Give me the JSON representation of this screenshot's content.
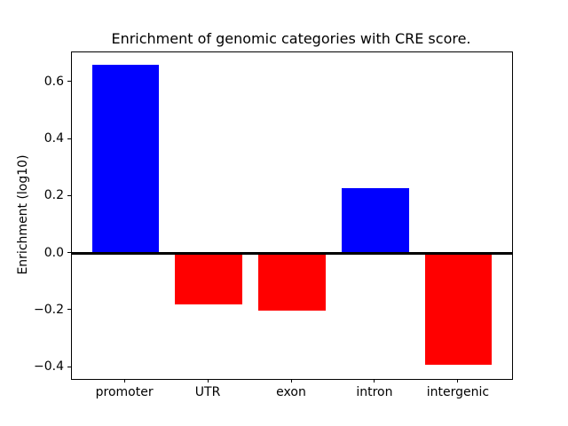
{
  "figure": {
    "background": "#ffffff"
  },
  "chart_data": {
    "type": "bar",
    "title": "Enrichment of genomic categories with CRE score.",
    "xlabel": "",
    "ylabel": "Enrichment (log10)",
    "categories": [
      "promoter",
      "UTR",
      "exon",
      "intron",
      "intergenic"
    ],
    "values": [
      0.66,
      -0.18,
      -0.2,
      0.23,
      -0.39
    ],
    "bar_colors": [
      "#0000ff",
      "#ff0000",
      "#ff0000",
      "#0000ff",
      "#ff0000"
    ],
    "positive_color": "#0000ff",
    "negative_color": "#ff0000",
    "yticks": [
      0.6,
      0.4,
      0.2,
      0.0,
      -0.2,
      -0.4
    ],
    "ytick_labels": [
      "0.6",
      "0.4",
      "0.2",
      "0.0",
      "−0.2",
      "−0.4"
    ],
    "ylim": [
      -0.44,
      0.705
    ],
    "xlim": [
      -0.64,
      4.64
    ],
    "bar_width_units": 0.8,
    "zero_line": true,
    "grid": false,
    "legend": null
  }
}
